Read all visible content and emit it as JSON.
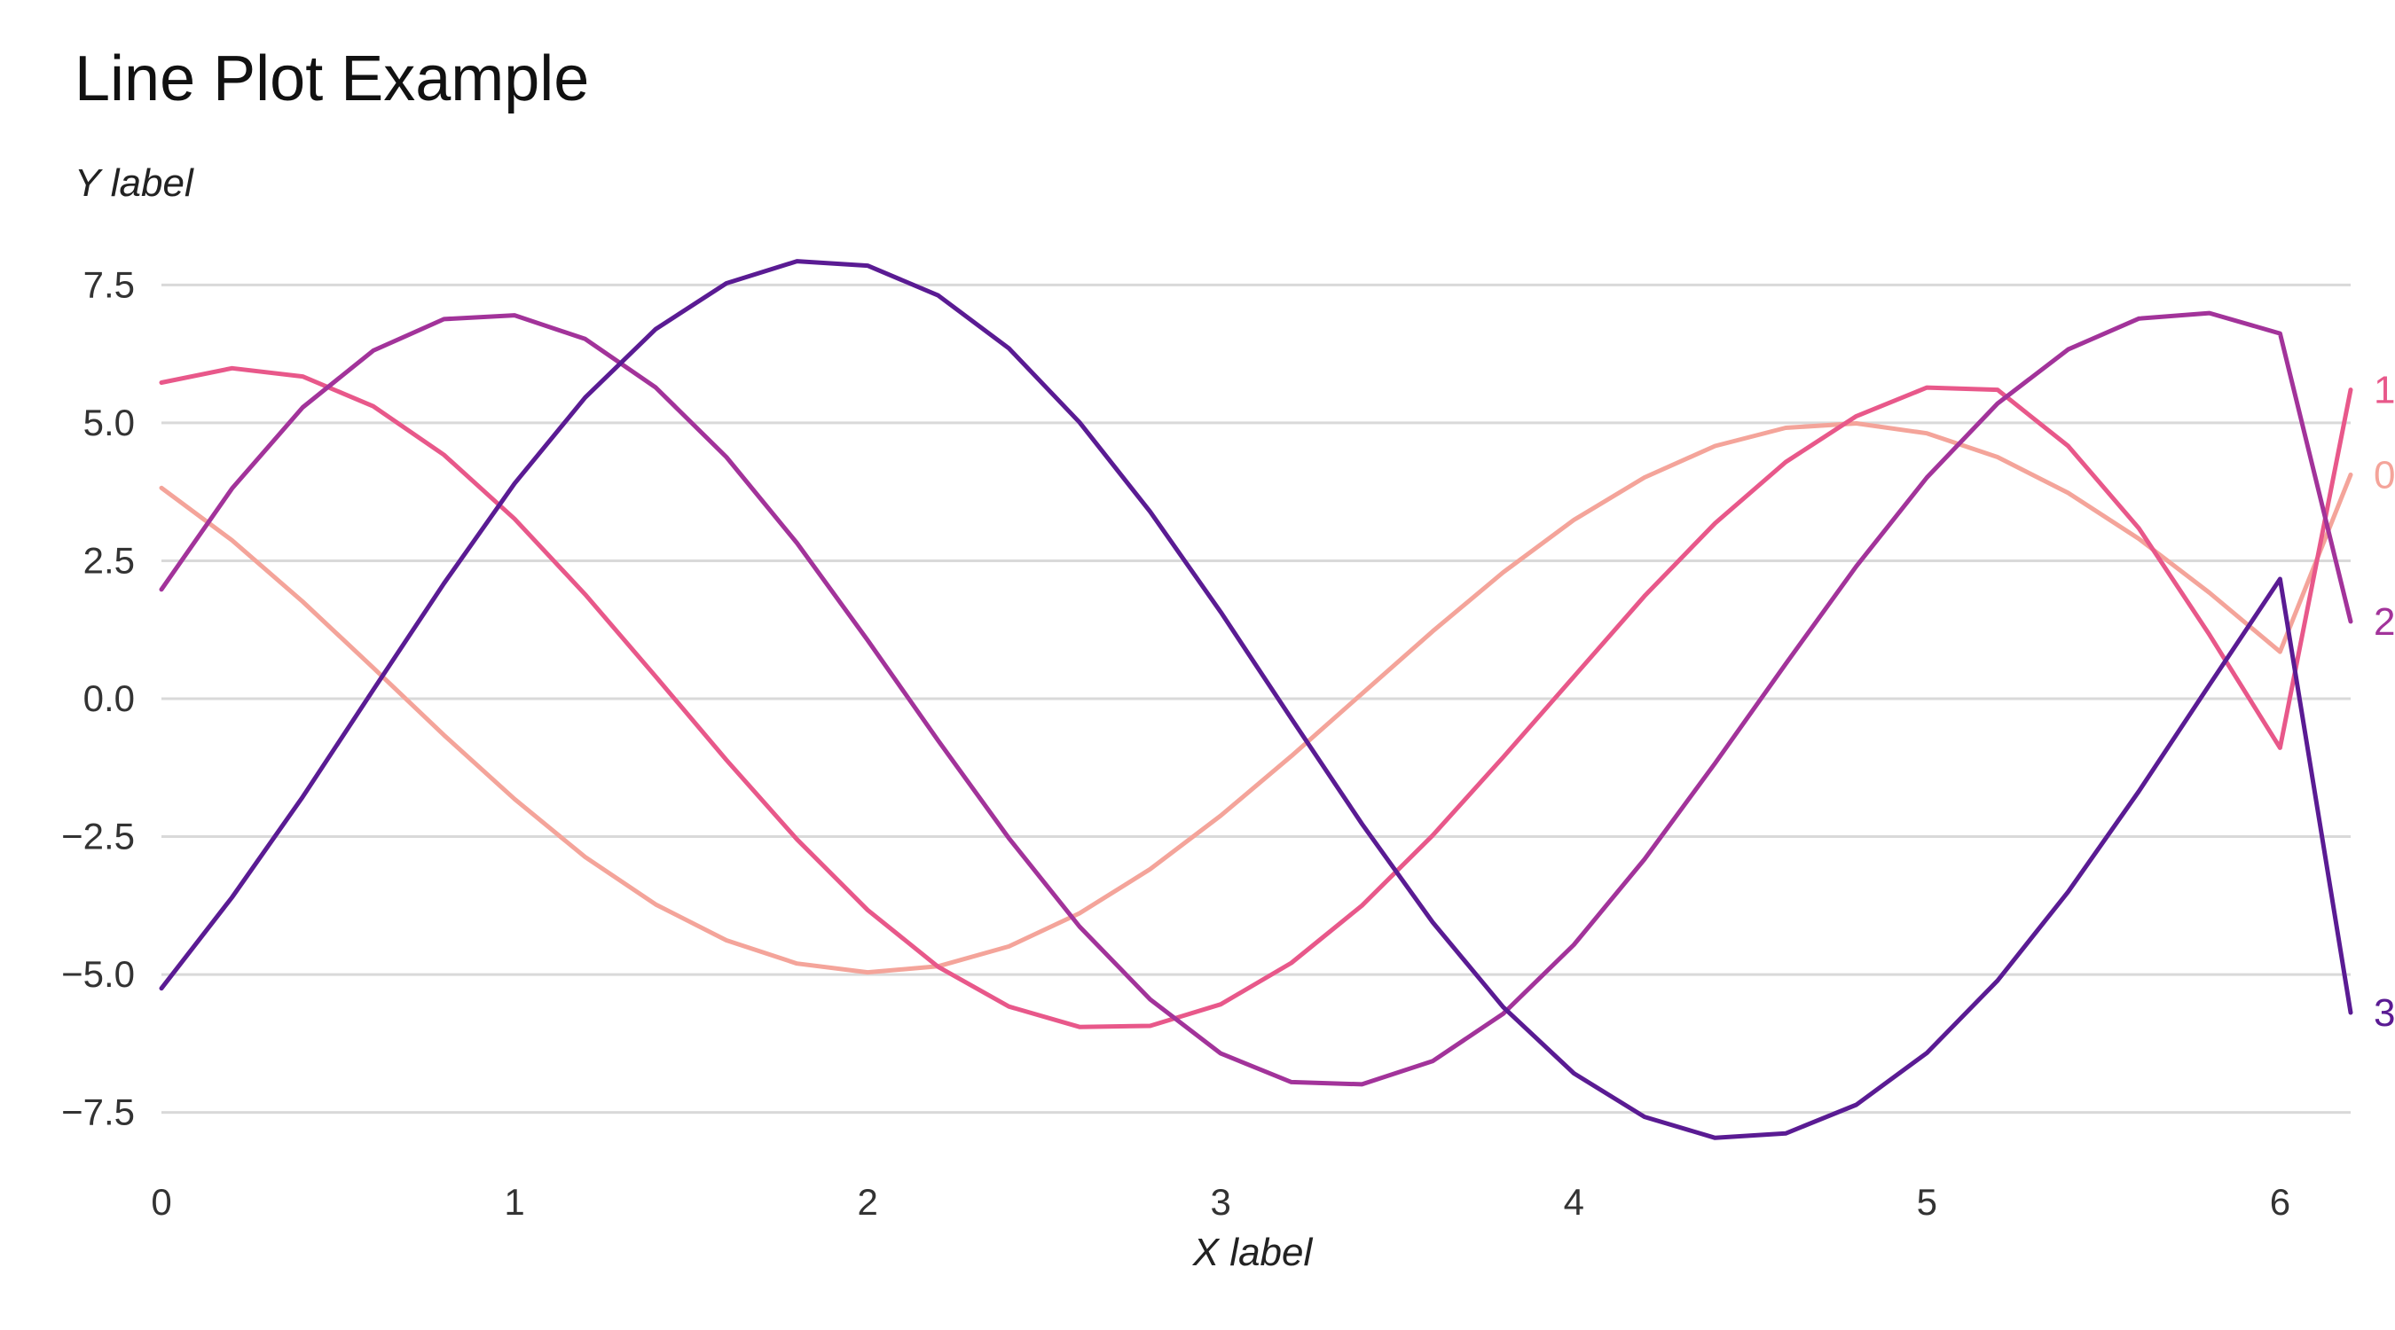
{
  "chart_data": {
    "type": "line",
    "title": "Line Plot Example",
    "xlabel": "X label",
    "ylabel": "Y label",
    "xlim": [
      0,
      6.2
    ],
    "ylim": [
      -9.0,
      9.0
    ],
    "x_ticks": [
      0,
      1,
      2,
      3,
      4,
      5,
      6
    ],
    "x_tick_labels": [
      "0",
      "1",
      "2",
      "3",
      "4",
      "5",
      "6"
    ],
    "y_ticks": [
      7.5,
      5.0,
      2.5,
      0.0,
      -2.5,
      -5.0,
      -7.5
    ],
    "y_tick_labels": [
      "7.5",
      "5.0",
      "2.5",
      "0.0",
      "−2.5",
      "−5.0",
      "−7.5"
    ],
    "grid": "horizontal",
    "legend": "direct labels at right end of lines",
    "x": [
      0.0,
      0.2,
      0.4,
      0.6,
      0.8,
      1.0,
      1.2,
      1.4,
      1.6,
      1.8,
      2.0,
      2.2,
      2.4,
      2.6,
      2.8,
      3.0,
      3.2,
      3.4,
      3.6,
      3.8,
      4.0,
      4.2,
      4.4,
      4.6,
      4.8,
      5.0,
      5.2,
      5.4,
      5.6,
      5.8,
      6.0,
      6.2
    ],
    "series": [
      {
        "name": "0",
        "color": "#f4a49a",
        "values": [
          3.82,
          2.87,
          1.76,
          0.56,
          -0.66,
          -1.82,
          -2.87,
          -3.73,
          -4.38,
          -4.8,
          -4.96,
          -4.85,
          -4.49,
          -3.89,
          -3.09,
          -2.12,
          -1.04,
          0.09,
          1.22,
          2.29,
          3.24,
          4.01,
          4.58,
          4.91,
          4.99,
          4.81,
          4.38,
          3.73,
          2.9,
          1.92,
          0.85,
          4.06
        ]
      },
      {
        "name": "1",
        "color": "#e8588a",
        "values": [
          5.73,
          5.99,
          5.84,
          5.3,
          4.42,
          3.26,
          1.89,
          0.4,
          -1.11,
          -2.55,
          -3.83,
          -4.86,
          -5.58,
          -5.95,
          -5.93,
          -5.54,
          -4.79,
          -3.75,
          -2.48,
          -1.06,
          0.4,
          1.86,
          3.18,
          4.29,
          5.12,
          5.64,
          5.6,
          4.58,
          3.09,
          1.16,
          -0.89,
          5.6
        ]
      },
      {
        "name": "2",
        "color": "#a2339a",
        "values": [
          1.98,
          3.81,
          5.28,
          6.31,
          6.88,
          6.95,
          6.52,
          5.64,
          4.38,
          2.82,
          1.06,
          -0.76,
          -2.53,
          -4.13,
          -5.45,
          -6.43,
          -6.95,
          -6.99,
          -6.57,
          -5.71,
          -4.46,
          -2.91,
          -1.17,
          0.63,
          2.4,
          4.01,
          5.35,
          6.33,
          6.89,
          6.99,
          6.62,
          1.4
        ]
      },
      {
        "name": "3",
        "color": "#5a1b93",
        "values": [
          -5.25,
          -3.6,
          -1.78,
          0.16,
          2.09,
          3.9,
          5.46,
          6.7,
          7.53,
          7.93,
          7.85,
          7.31,
          6.35,
          5.01,
          3.39,
          1.57,
          -0.36,
          -2.27,
          -4.05,
          -5.59,
          -6.79,
          -7.58,
          -7.96,
          -7.88,
          -7.36,
          -6.42,
          -5.11,
          -3.5,
          -1.68,
          0.25,
          2.17,
          -5.69
        ]
      }
    ]
  }
}
